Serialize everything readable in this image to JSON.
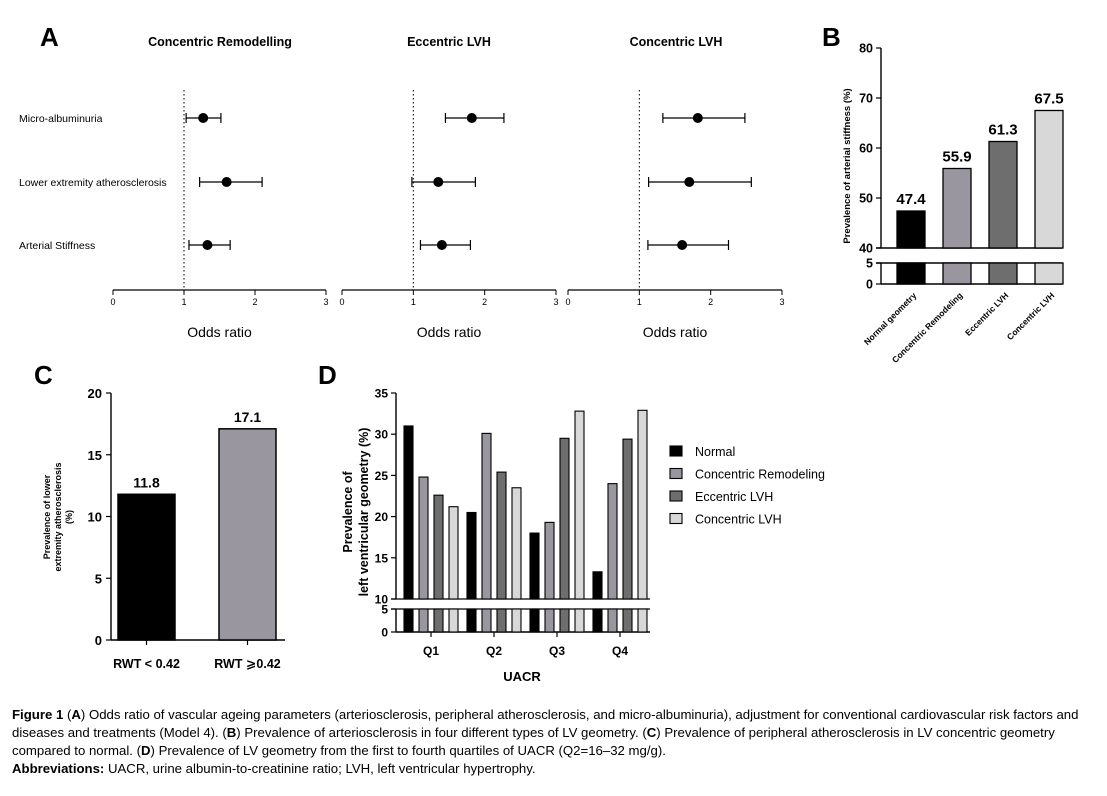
{
  "colors": {
    "black": "#000000",
    "gray_dark": "#6e6e6e",
    "gray_mid": "#9a96a0",
    "gray_light": "#d8d8d8"
  },
  "panel_labels": {
    "a": "A",
    "b": "B",
    "c": "C",
    "d": "D"
  },
  "chart_data": [
    {
      "id": "A",
      "type": "scatter",
      "subtype": "forest-plot",
      "xlabel": "Odds ratio",
      "reference_line": 1,
      "rows": [
        "Micro-albuminuria",
        "Lower extremity atherosclerosis",
        "Arterial Stiffness"
      ],
      "ticks": [
        "0",
        "1",
        "2",
        "3"
      ],
      "xlim": [
        0,
        3
      ],
      "panels": [
        {
          "title": "Concentric Remodelling",
          "points": [
            {
              "or": 1.27,
              "lo": 1.03,
              "hi": 1.52
            },
            {
              "or": 1.6,
              "lo": 1.22,
              "hi": 2.1
            },
            {
              "or": 1.33,
              "lo": 1.07,
              "hi": 1.65
            }
          ]
        },
        {
          "title": "Eccentric LVH",
          "points": [
            {
              "or": 1.82,
              "lo": 1.45,
              "hi": 2.27
            },
            {
              "or": 1.35,
              "lo": 0.98,
              "hi": 1.87
            },
            {
              "or": 1.4,
              "lo": 1.1,
              "hi": 1.8
            }
          ]
        },
        {
          "title": "Concentric LVH",
          "points": [
            {
              "or": 1.82,
              "lo": 1.33,
              "hi": 2.48
            },
            {
              "or": 1.7,
              "lo": 1.13,
              "hi": 2.57
            },
            {
              "or": 1.6,
              "lo": 1.12,
              "hi": 2.25
            }
          ]
        }
      ]
    },
    {
      "id": "B",
      "type": "bar",
      "ylabel": "Prevalence of arterial stiffness (%)",
      "categories": [
        "Normal geometry",
        "Concentric Remodeling",
        "Eccentric LVH",
        "Concentric LVH"
      ],
      "values": [
        47.4,
        55.9,
        61.3,
        67.5
      ],
      "value_labels": [
        "47.4",
        "55.9",
        "61.3",
        "67.5"
      ],
      "ylim": [
        0,
        80
      ],
      "axis_break": [
        5,
        40
      ],
      "ticks_upper": [
        "40",
        "50",
        "60",
        "70",
        "80"
      ],
      "ticks_lower": [
        "0",
        "5"
      ]
    },
    {
      "id": "C",
      "type": "bar",
      "ylabel_lines": [
        "Prevalence of lower",
        "extremity atherosclerosis",
        "(%)"
      ],
      "categories": [
        "RWT < 0.42",
        "RWT ⩾0.42"
      ],
      "values": [
        11.8,
        17.1
      ],
      "value_labels": [
        "11.8",
        "17.1"
      ],
      "ylim": [
        0,
        20
      ],
      "ticks": [
        "0",
        "5",
        "10",
        "15",
        "20"
      ]
    },
    {
      "id": "D",
      "type": "bar",
      "xlabel": "UACR",
      "ylabel_lines": [
        "Prevalence of",
        "left ventricular geometry (%)"
      ],
      "categories": [
        "Q1",
        "Q2",
        "Q3",
        "Q4"
      ],
      "series": [
        {
          "name": "Normal",
          "values": [
            31.0,
            20.5,
            18.0,
            13.3
          ]
        },
        {
          "name": "Concentric Remodeling",
          "values": [
            24.8,
            30.1,
            19.3,
            24.0
          ]
        },
        {
          "name": "Eccentric LVH",
          "values": [
            22.6,
            25.4,
            29.5,
            29.4
          ]
        },
        {
          "name": "Concentric LVH",
          "values": [
            21.2,
            23.5,
            32.8,
            32.9
          ]
        }
      ],
      "ylim": [
        0,
        35
      ],
      "axis_break": [
        5,
        10
      ],
      "ticks_upper": [
        "10",
        "15",
        "20",
        "25",
        "30",
        "35"
      ],
      "ticks_lower": [
        "0",
        "5"
      ]
    }
  ],
  "caption": {
    "fig_label": "Figure 1",
    "open": " (",
    "a_tag": "A",
    "a_text": ") Odds ratio of vascular ageing parameters (arteriosclerosis, peripheral atherosclerosis, and micro-albuminuria), adjustment for conventional cardiovascular risk factors and diseases and treatments (Model 4). (",
    "b_tag": "B",
    "b_text": ") Prevalence of arteriosclerosis in four different types of LV geometry. (",
    "c_tag": "C",
    "c_text": ") Prevalence of peripheral atherosclerosis in LV concentric geometry compared to normal. (",
    "d_tag": "D",
    "d_text": ") Prevalence of LV geometry from the first to fourth quartiles of UACR (Q2=16–32 mg/g).",
    "abbr_label": "Abbreviations:",
    "abbr_text": " UACR, urine albumin-to-creatinine ratio; LVH, left ventricular hypertrophy."
  }
}
